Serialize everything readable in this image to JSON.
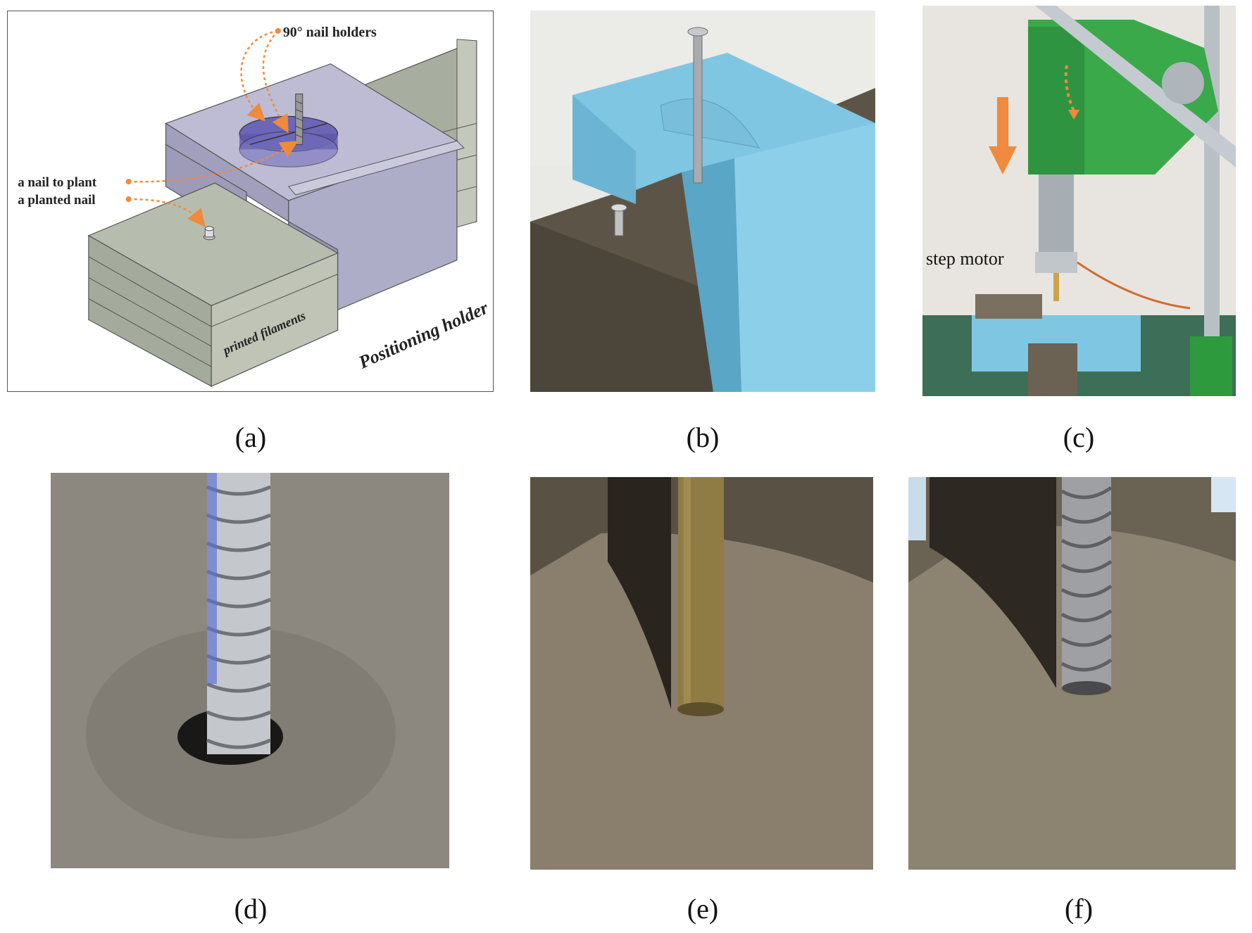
{
  "figure": {
    "panels": [
      {
        "id": "a",
        "caption": "(a)",
        "kind": "schematic drawing"
      },
      {
        "id": "b",
        "caption": "(b)",
        "kind": "photo"
      },
      {
        "id": "c",
        "caption": "(c)",
        "kind": "photo"
      },
      {
        "id": "d",
        "caption": "(d)",
        "kind": "photo"
      },
      {
        "id": "e",
        "caption": "(e)",
        "kind": "photo"
      },
      {
        "id": "f",
        "caption": "(f)",
        "kind": "photo"
      }
    ],
    "labels": {
      "nail_holders": "90° nail holders",
      "nail_to_plant": "a nail to plant",
      "planted_nail": "a planted nail",
      "printed_filaments": "printed filaments",
      "positioning_holder": "Positioning holder",
      "step_motor": "step motor"
    },
    "colors": {
      "annotation_orange": "#f08a3c",
      "holder_purple": "#a9a8c4",
      "filament_green": "#b7bdae",
      "holder_blue": "#7fc6e3",
      "clay_brown": "#6e6658",
      "press_green": "#3aa84a"
    }
  }
}
